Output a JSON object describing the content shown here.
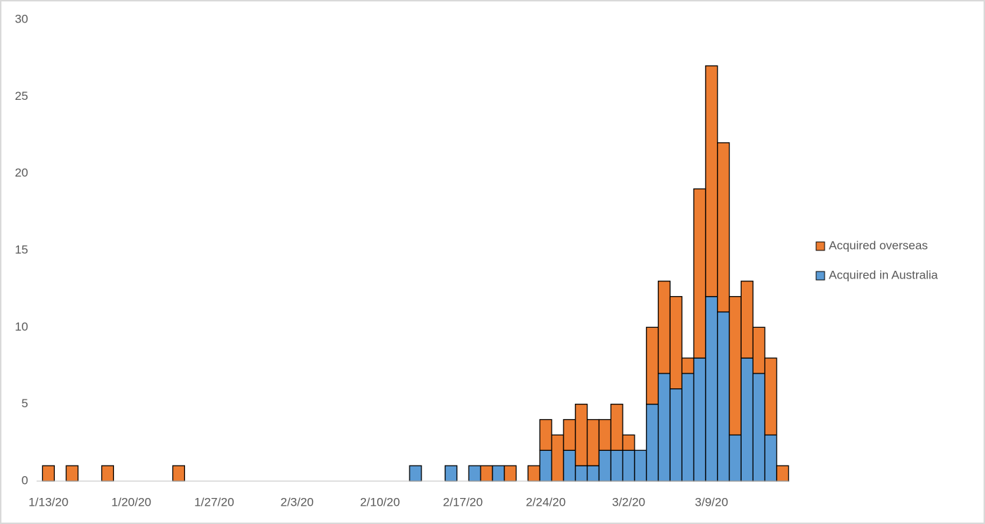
{
  "chart_data": {
    "type": "stacked_bar",
    "categories": [
      "1/13/20",
      null,
      null,
      null,
      null,
      null,
      null,
      "1/20/20",
      null,
      null,
      null,
      null,
      null,
      null,
      "1/27/20",
      null,
      null,
      null,
      null,
      null,
      null,
      "2/3/20",
      null,
      null,
      null,
      null,
      null,
      null,
      "2/10/20",
      null,
      null,
      null,
      null,
      null,
      null,
      "2/17/20",
      null,
      null,
      null,
      null,
      null,
      null,
      "2/24/20",
      null,
      null,
      null,
      null,
      null,
      null,
      "3/2/20",
      null,
      null,
      null,
      null,
      null,
      null,
      "3/9/20",
      null,
      null,
      null,
      null,
      null,
      null
    ],
    "series": [
      {
        "name": "Acquired in Australia",
        "color": "#5b9bd5",
        "values": [
          0,
          0,
          0,
          0,
          0,
          0,
          0,
          0,
          0,
          0,
          0,
          0,
          0,
          0,
          0,
          0,
          0,
          0,
          0,
          0,
          0,
          0,
          0,
          0,
          0,
          0,
          0,
          0,
          0,
          0,
          0,
          1,
          0,
          0,
          1,
          0,
          1,
          0,
          1,
          0,
          0,
          0,
          2,
          0,
          2,
          1,
          1,
          2,
          2,
          2,
          2,
          5,
          7,
          6,
          7,
          8,
          12,
          11,
          3,
          8,
          7,
          3,
          0
        ]
      },
      {
        "name": "Acquired overseas",
        "color": "#ed7d31",
        "values": [
          1,
          0,
          1,
          0,
          0,
          1,
          0,
          0,
          0,
          0,
          0,
          1,
          0,
          0,
          0,
          0,
          0,
          0,
          0,
          0,
          0,
          0,
          0,
          0,
          0,
          0,
          0,
          0,
          0,
          0,
          0,
          0,
          0,
          0,
          0,
          0,
          0,
          1,
          0,
          1,
          0,
          1,
          2,
          3,
          2,
          4,
          3,
          2,
          3,
          1,
          0,
          5,
          6,
          6,
          1,
          11,
          15,
          11,
          9,
          5,
          3,
          5,
          1
        ]
      }
    ],
    "ylim": [
      0,
      30
    ],
    "yticks": [
      0,
      5,
      10,
      15,
      20,
      25,
      30
    ],
    "grid": false,
    "legend": "right"
  }
}
